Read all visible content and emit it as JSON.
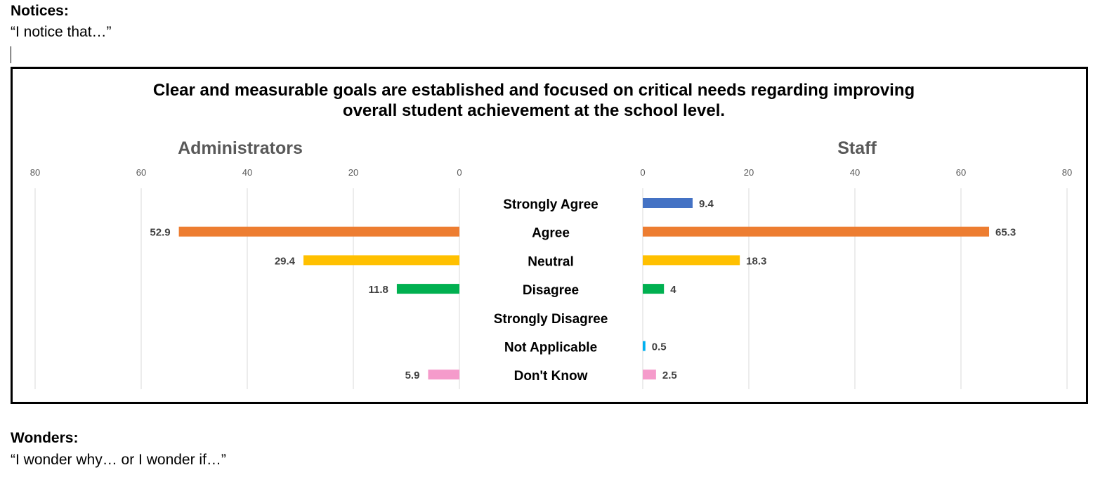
{
  "notices": {
    "heading": "Notices:",
    "prompt": "“I notice that…”"
  },
  "wonders": {
    "heading": "Wonders:",
    "prompt": "“I wonder why… or I wonder if…”"
  },
  "chart_data": {
    "type": "bar",
    "orientation": "horizontal-butterfly",
    "title_lines": [
      "Clear and measurable goals are established and focused on critical needs regarding improving",
      "overall student achievement at the school level."
    ],
    "categories": [
      "Strongly Agree",
      "Agree",
      "Neutral",
      "Disagree",
      "Strongly Disagree",
      "Not Applicable",
      "Don't Know"
    ],
    "category_colors": [
      "#4472C4",
      "#ED7D31",
      "#FFC000",
      "#00B050",
      "#7F7F7F",
      "#00B0F0",
      "#F59BCB"
    ],
    "panels": [
      {
        "name": "Administrators",
        "values": [
          null,
          52.9,
          29.4,
          11.8,
          null,
          null,
          5.9
        ]
      },
      {
        "name": "Staff",
        "values": [
          9.4,
          65.3,
          18.3,
          4,
          null,
          0.5,
          2.5
        ]
      }
    ],
    "xlim": [
      0,
      80
    ],
    "ticks": [
      0,
      20,
      40,
      60,
      80
    ],
    "grid": true
  }
}
